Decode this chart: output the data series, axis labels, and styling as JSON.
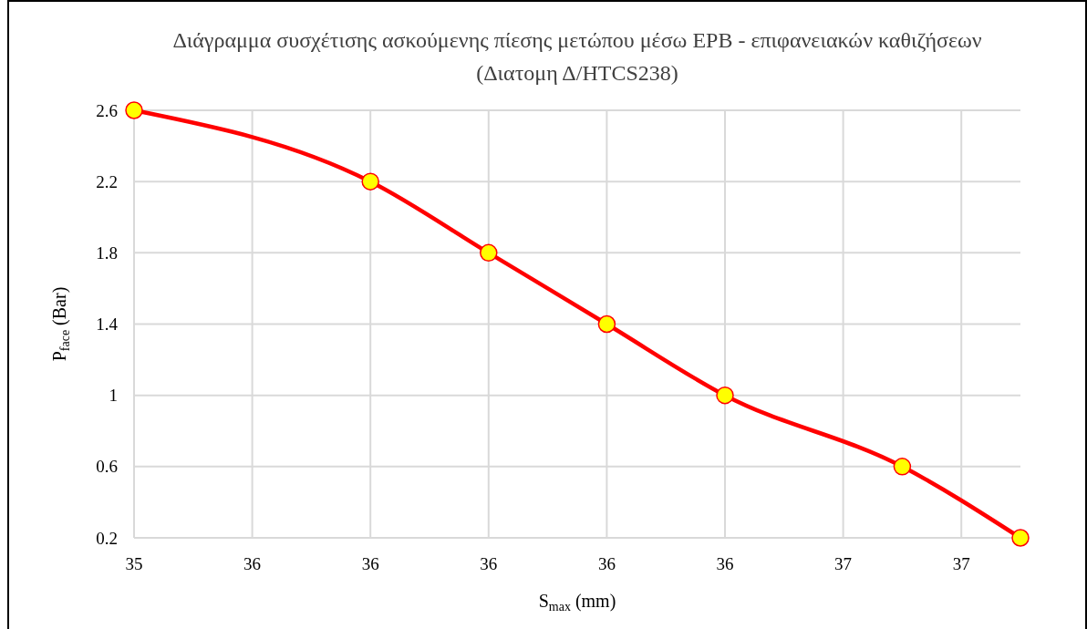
{
  "chart_data": {
    "type": "line",
    "title": "Διάγραμμα συσχέτισης ασκούμενης πίεσης μετώπου μέσω EPB - επιφανειακών καθιζήσεων (Διατομη Δ/HTCS238)",
    "xlabel": "S$_{max}$ (mm)",
    "ylabel": "P$_{face}$ (Bar)",
    "x": [
      35.4,
      35.8,
      36.0,
      36.2,
      36.4,
      36.7,
      36.9
    ],
    "series": [
      {
        "color": "#ff0000",
        "values": [
          2.6,
          2.2,
          1.8,
          1.4,
          1.0,
          0.6,
          0.2
        ]
      }
    ],
    "xlim": [
      35.4,
      36.9
    ],
    "xticks": [
      {
        "value": 35.4,
        "label": "35"
      },
      {
        "value": 35.6,
        "label": "36"
      },
      {
        "value": 35.8,
        "label": "36"
      },
      {
        "value": 36.0,
        "label": "36"
      },
      {
        "value": 36.2,
        "label": "36"
      },
      {
        "value": 36.4,
        "label": "36"
      },
      {
        "value": 36.6,
        "label": "37"
      },
      {
        "value": 36.8,
        "label": "37"
      }
    ],
    "ylim": [
      0.2,
      2.6
    ],
    "yticks": [
      0.2,
      0.6,
      1,
      1.4,
      1.8,
      2.2,
      2.6
    ],
    "grid": true,
    "marker": "circle",
    "line_style": "solid"
  }
}
